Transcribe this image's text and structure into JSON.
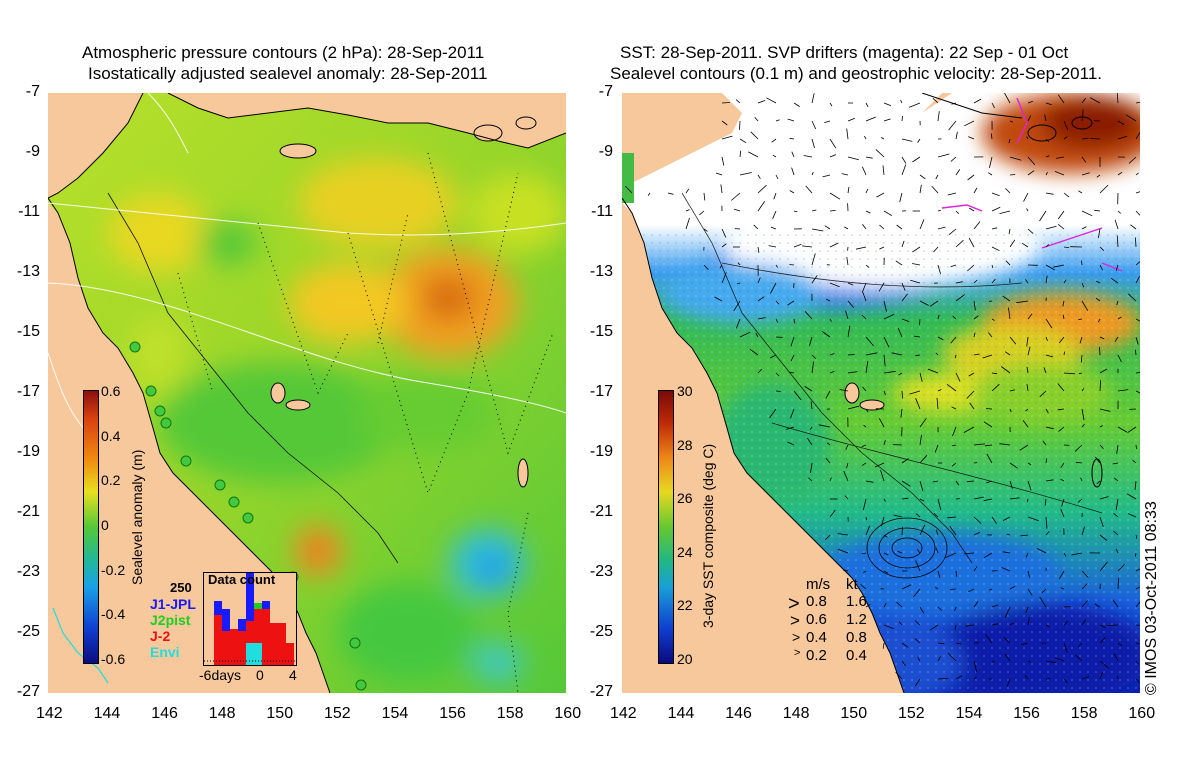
{
  "left_panel": {
    "title_line1": "Atmospheric pressure contours (2 hPa): 28-Sep-2011",
    "title_line2": "Isostatically adjusted sealevel anomaly: 28-Sep-2011",
    "colorbar_label": "Sealevel anomaly (m)",
    "colorbar_ticks": [
      "0.6",
      "0.4",
      "0.2",
      "0",
      "-0.2",
      "-0.4",
      "-0.6"
    ],
    "inset": {
      "title": "Data count",
      "ymax_label": "250",
      "xlabels": [
        "-6days",
        "0",
        "4"
      ],
      "legend": [
        {
          "label": "J1-JPL",
          "color": "#1a1aff"
        },
        {
          "label": "J2pist",
          "color": "#22cc22"
        },
        {
          "label": "J-2",
          "color": "#ee1111"
        },
        {
          "label": "Envi",
          "color": "#22dddd"
        }
      ]
    }
  },
  "right_panel": {
    "title_line1": "SST: 28-Sep-2011. SVP drifters (magenta): 22 Sep - 01 Oct",
    "title_line2": "Sealevel contours (0.1 m) and geostrophic velocity: 28-Sep-2011.",
    "colorbar_label": "3-day SST composite (deg C)",
    "colorbar_ticks": [
      "30",
      "28",
      "26",
      "24",
      "22",
      "20"
    ],
    "velocity_legend": {
      "header_ms": "m/s",
      "header_kt": "kt",
      "rows": [
        {
          "ms": "0.8",
          "kt": "1.6"
        },
        {
          "ms": "0.6",
          "kt": "1.2"
        },
        {
          "ms": "0.4",
          "kt": "0.8"
        },
        {
          "ms": "0.2",
          "kt": "0.4"
        }
      ]
    }
  },
  "axes": {
    "x_ticks": [
      "142",
      "144",
      "146",
      "148",
      "150",
      "152",
      "154",
      "156",
      "158",
      "160"
    ],
    "y_ticks": [
      "-7",
      "-9",
      "-11",
      "-13",
      "-15",
      "-17",
      "-19",
      "-21",
      "-23",
      "-25",
      "-27"
    ]
  },
  "credit": "© IMOS 03-Oct-2011 08:33",
  "colors": {
    "land": "#f7c89b",
    "ocean_green": "#55cc33",
    "anomaly_high": "#e07810",
    "sst_cold": "#1040cc",
    "drifter": "#dd22dd"
  }
}
